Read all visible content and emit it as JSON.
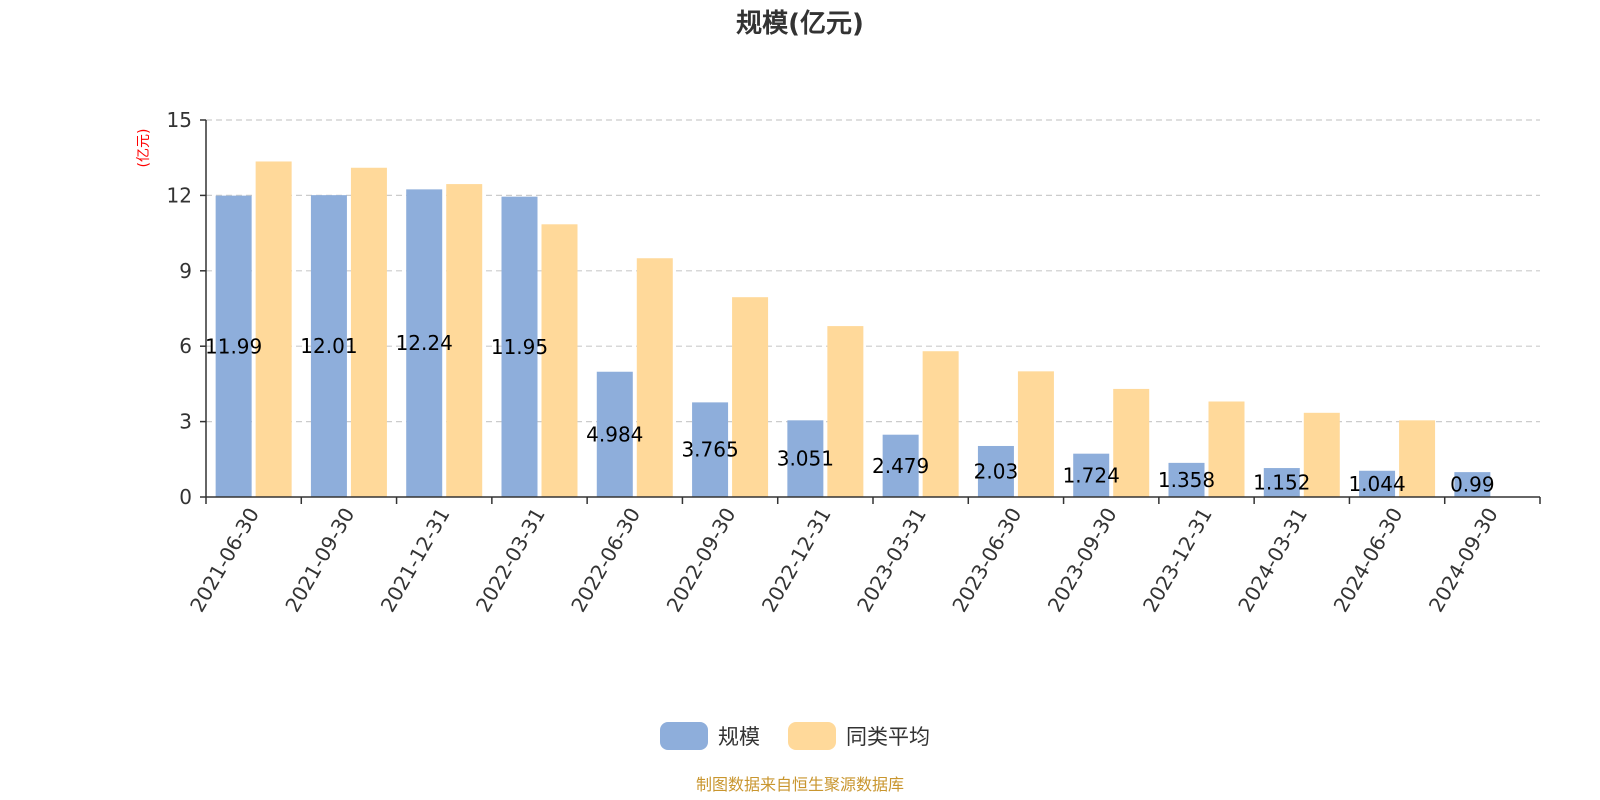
{
  "chart_data": {
    "type": "bar",
    "title": "规模(亿元)",
    "ylabel": "(亿元)",
    "ylim": [
      0,
      15
    ],
    "yticks": [
      0,
      3,
      6,
      9,
      12,
      15
    ],
    "grid": true,
    "legend_position": "bottom-center",
    "categories": [
      "2021-06-30",
      "2021-09-30",
      "2021-12-31",
      "2022-03-31",
      "2022-06-30",
      "2022-09-30",
      "2022-12-31",
      "2023-03-31",
      "2023-06-30",
      "2023-09-30",
      "2023-12-31",
      "2024-03-31",
      "2024-06-30",
      "2024-09-30"
    ],
    "series": [
      {
        "name": "规模",
        "color": "#8eaedb",
        "values": [
          11.99,
          12.01,
          12.24,
          11.95,
          4.984,
          3.765,
          3.051,
          2.479,
          2.03,
          1.724,
          1.358,
          1.152,
          1.044,
          0.99
        ],
        "labels": [
          "11.99",
          "12.01",
          "12.24",
          "11.95",
          "4.984",
          "3.765",
          "3.051",
          "2.479",
          "2.03",
          "1.724",
          "1.358",
          "1.152",
          "1.044",
          "0.99"
        ]
      },
      {
        "name": "同类平均",
        "color": "#ffd99a",
        "values": [
          13.35,
          13.1,
          12.45,
          10.85,
          9.5,
          7.95,
          6.8,
          5.8,
          5.0,
          4.3,
          3.8,
          3.35,
          3.05,
          null
        ]
      }
    ],
    "source": "制图数据来自恒生聚源数据库",
    "colors": {
      "axis": "#333333",
      "grid": "#cccccc",
      "ylabel": "#ff0000",
      "source": "#c9962f"
    }
  }
}
